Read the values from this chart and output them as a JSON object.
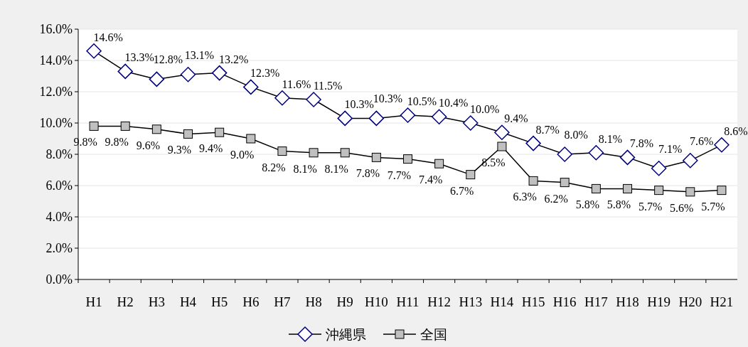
{
  "chart_data": {
    "type": "line",
    "categories": [
      "H1",
      "H2",
      "H3",
      "H4",
      "H5",
      "H6",
      "H7",
      "H8",
      "H9",
      "H10",
      "H11",
      "H12",
      "H13",
      "H14",
      "H15",
      "H16",
      "H17",
      "H18",
      "H19",
      "H20",
      "H21"
    ],
    "ylim": [
      0,
      16
    ],
    "yticks": [
      {
        "value": 0,
        "label": "0.0%"
      },
      {
        "value": 2,
        "label": "2.0%"
      },
      {
        "value": 4,
        "label": "4.0%"
      },
      {
        "value": 6,
        "label": "6.0%"
      },
      {
        "value": 8,
        "label": "8.0%"
      },
      {
        "value": 10,
        "label": "10.0%"
      },
      {
        "value": 12,
        "label": "12.0%"
      },
      {
        "value": 14,
        "label": "14.0%"
      },
      {
        "value": 16,
        "label": "16.0%"
      }
    ],
    "grid": "y",
    "legend": "bottom",
    "series": [
      {
        "name": "沖縄県",
        "color": "#000080",
        "marker": "diamond",
        "values": [
          14.6,
          13.3,
          12.8,
          13.1,
          13.2,
          12.3,
          11.6,
          11.5,
          10.3,
          10.3,
          10.5,
          10.4,
          10.0,
          9.4,
          8.7,
          8.0,
          8.1,
          7.8,
          7.1,
          7.6,
          8.6
        ],
        "value_labels": [
          "14.6%",
          "13.3%",
          "12.8%",
          "13.1%",
          "13.2%",
          "12.3%",
          "11.6%",
          "11.5%",
          "10.3%",
          "10.3%",
          "10.5%",
          "10.4%",
          "10.0%",
          "9.4%",
          "8.7%",
          "8.0%",
          "8.1%",
          "7.8%",
          "7.1%",
          "7.6%",
          "8.6%"
        ]
      },
      {
        "name": "全国",
        "color": "#c0c0c0",
        "marker": "square",
        "values": [
          9.8,
          9.8,
          9.6,
          9.3,
          9.4,
          9.0,
          8.2,
          8.1,
          8.1,
          7.8,
          7.7,
          7.4,
          6.7,
          8.5,
          6.3,
          6.2,
          5.8,
          5.8,
          5.7,
          5.6,
          5.7
        ],
        "value_labels": [
          "9.8%",
          "9.8%",
          "9.6%",
          "9.3%",
          "9.4%",
          "9.0%",
          "8.2%",
          "8.1%",
          "8.1%",
          "7.8%",
          "7.7%",
          "7.4%",
          "6.7%",
          "8.5%",
          "6.3%",
          "6.2%",
          "5.8%",
          "5.8%",
          "5.7%",
          "5.6%",
          "5.7%"
        ]
      }
    ]
  }
}
